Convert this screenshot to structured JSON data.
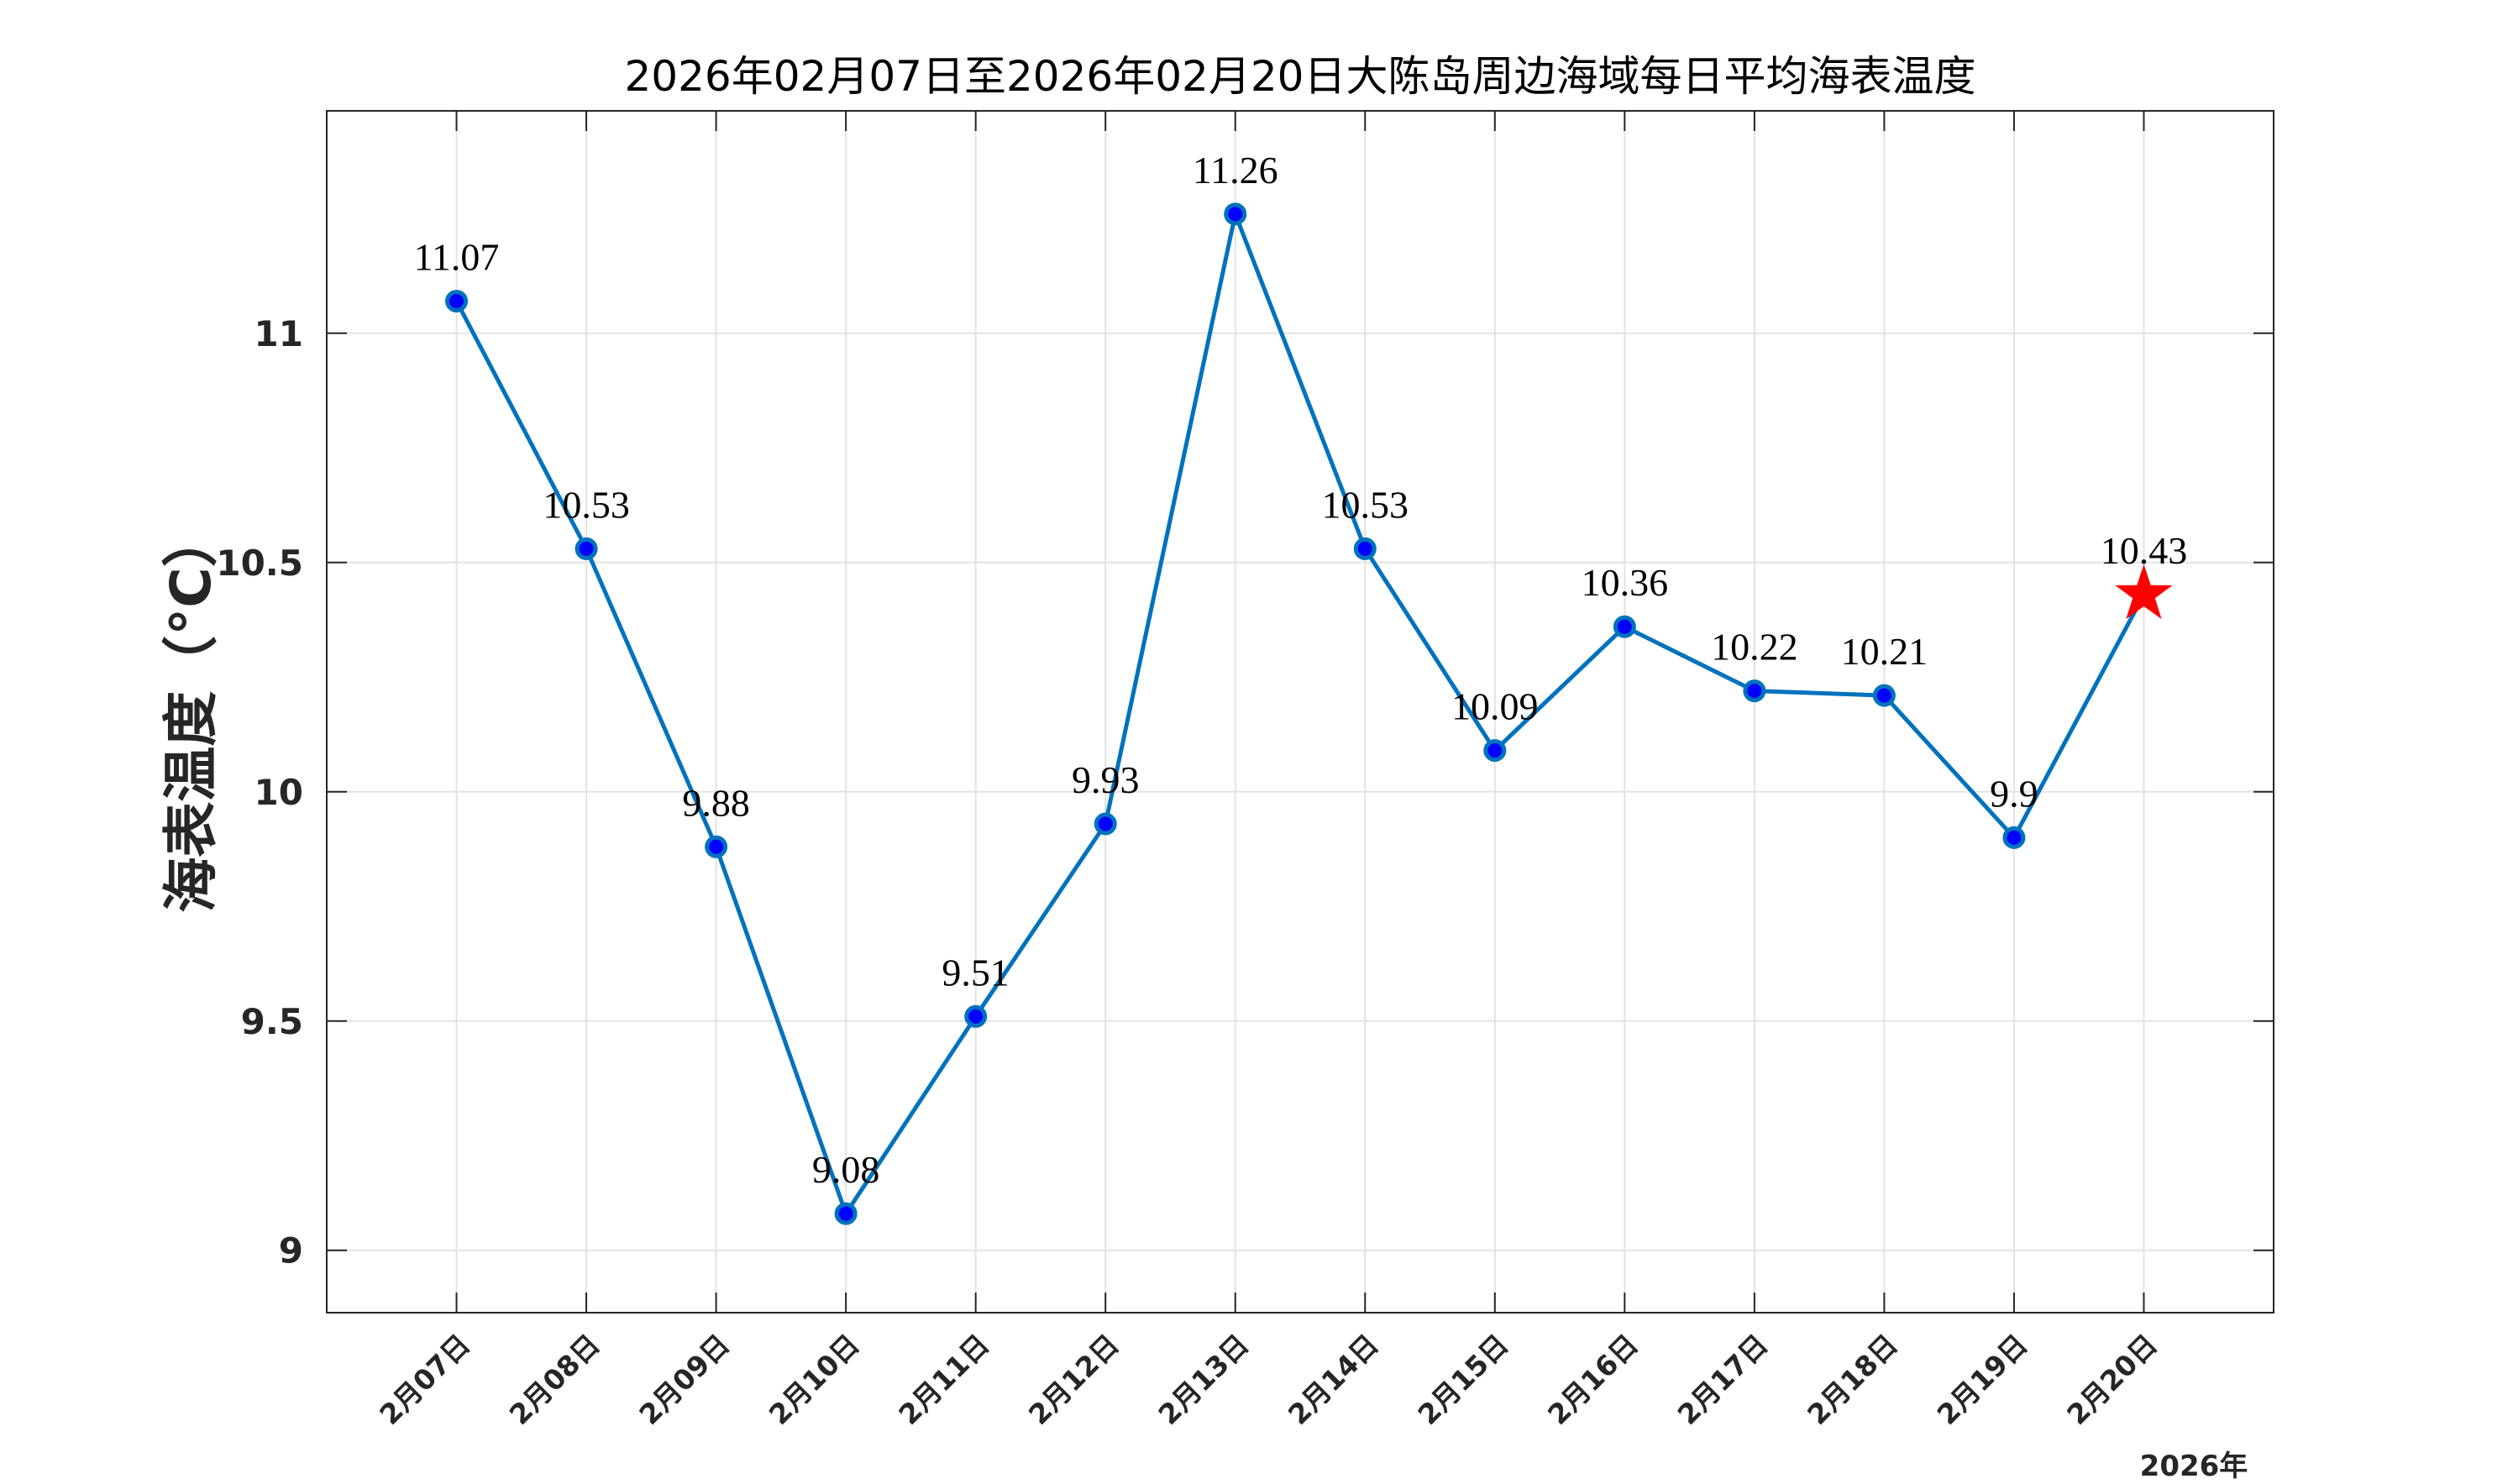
{
  "chart_data": {
    "type": "line",
    "title": "2026年02月07日至2026年02月20日大陈岛周边海域每日平均海表温度",
    "xlabel": "",
    "ylabel": "海表温度（°C）",
    "x_secondary_label": "2026年",
    "categories": [
      "2月07日",
      "2月08日",
      "2月09日",
      "2月10日",
      "2月11日",
      "2月12日",
      "2月13日",
      "2月14日",
      "2月15日",
      "2月16日",
      "2月17日",
      "2月18日",
      "2月19日",
      "2月20日"
    ],
    "values": [
      11.07,
      10.53,
      9.88,
      9.08,
      9.51,
      9.93,
      11.26,
      10.53,
      10.09,
      10.36,
      10.22,
      10.21,
      9.9,
      10.43
    ],
    "data_labels": [
      "11.07",
      "10.53",
      "9.88",
      "9.08",
      "9.51",
      "9.93",
      "11.26",
      "10.53",
      "10.09",
      "10.36",
      "10.22",
      "10.21",
      "9.9",
      "10.43"
    ],
    "ylim": [
      8.864,
      11.485
    ],
    "xlim": [
      0,
      15
    ],
    "yticks": [
      9,
      9.5,
      10,
      10.5,
      11
    ],
    "ytick_labels": [
      "9",
      "9.5",
      "10",
      "10.5",
      "11"
    ],
    "grid": true,
    "line_color": "#0072BD",
    "marker_color": "#0000FF",
    "highlight_marker": "star",
    "highlight_color": "#FF0000"
  }
}
